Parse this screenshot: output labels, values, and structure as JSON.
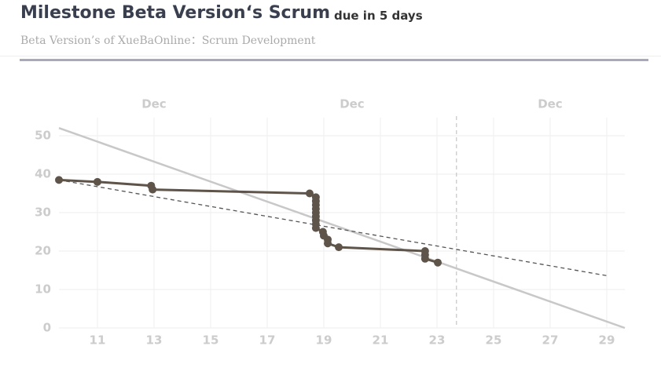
{
  "header": {
    "title": "Milestone Beta Version‘s Scrum",
    "due": "due in 5 days",
    "subtitle": "Beta Version’s of XueBaOnline：Scrum Development"
  },
  "chart_data": {
    "type": "line",
    "xlim": [
      9.64,
      29.64
    ],
    "ylim": [
      0,
      54.7
    ],
    "xticks": [
      11,
      13,
      15,
      17,
      19,
      21,
      23,
      25,
      27,
      29
    ],
    "yticks": [
      0,
      10,
      20,
      30,
      40,
      50
    ],
    "month_labels": [
      {
        "value": 13,
        "label": "Dec"
      },
      {
        "value": 20,
        "label": "Dec"
      },
      {
        "value": 27,
        "label": "Dec"
      }
    ],
    "grid": true,
    "marker_x": 23.69,
    "series": [
      {
        "x": [
          9.64,
          29.64
        ],
        "values": [
          52,
          0
        ],
        "color": "#c8c8c8"
      },
      {
        "x": [
          9.64,
          29.0
        ],
        "values": [
          38.5,
          13.6
        ],
        "color": "#555555",
        "dashed": true
      },
      {
        "x": [
          9.64,
          11,
          12.9,
          12.95,
          18.5,
          18.72,
          18.72,
          18.72,
          18.72,
          18.72,
          18.72,
          18.72,
          18.72,
          18.72,
          18.97,
          19.0,
          19.14,
          19.14,
          19.53,
          22.58,
          22.58,
          22.58,
          23.03
        ],
        "values": [
          38.5,
          38,
          37,
          36,
          35,
          34,
          33,
          32,
          31,
          30,
          29,
          28,
          27,
          26,
          25,
          24,
          23,
          22,
          21,
          20,
          19,
          18,
          17
        ],
        "color": "#5e544a",
        "markers": true
      }
    ]
  }
}
